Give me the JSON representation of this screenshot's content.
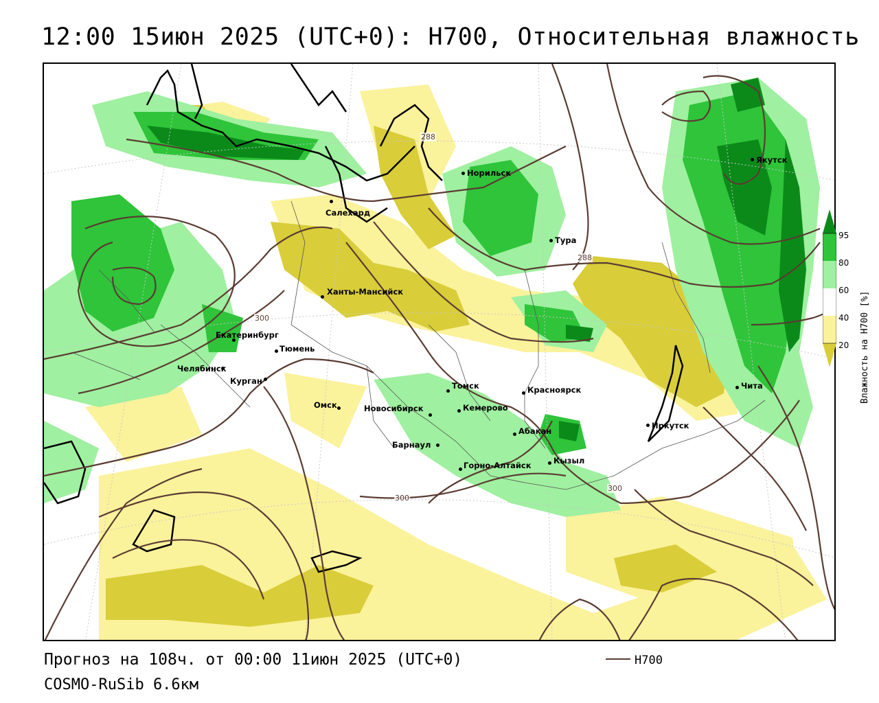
{
  "title": "12:00 15июн 2025 (UTC+0): H700, Относительная влажность",
  "footer": {
    "forecast": "Прогноз на 108ч. от 00:00 11июн 2025 (UTC+0)",
    "model": "COSMO-RuSib 6.6км",
    "legend_label": "H700"
  },
  "colorbar": {
    "title": "Влажность на H700 [%]",
    "ticks": [
      "95",
      "80",
      "60",
      "40",
      "20"
    ],
    "colors": [
      "#0b8a1a",
      "#2fc43a",
      "#9ff0a0",
      "#ffffff",
      "#fbf29c",
      "#d9cd3a"
    ]
  },
  "contour_color": "#5a3c32",
  "contour_labels": [
    "288",
    "288",
    "300",
    "300",
    "300"
  ],
  "cities": [
    {
      "name": "Якутск"
    },
    {
      "name": "Норильск"
    },
    {
      "name": "Салехард"
    },
    {
      "name": "Тура"
    },
    {
      "name": "Ханты-Мансийск"
    },
    {
      "name": "Екатеринбург"
    },
    {
      "name": "Тюмень"
    },
    {
      "name": "Челябинск"
    },
    {
      "name": "Курган"
    },
    {
      "name": "Омск"
    },
    {
      "name": "Новосибирск"
    },
    {
      "name": "Томск"
    },
    {
      "name": "Кемерово"
    },
    {
      "name": "Красноярск"
    },
    {
      "name": "Абакан"
    },
    {
      "name": "Барнаул"
    },
    {
      "name": "Горно-Алтайск"
    },
    {
      "name": "Кызыл"
    },
    {
      "name": "Иркутск"
    },
    {
      "name": "Чита"
    }
  ]
}
